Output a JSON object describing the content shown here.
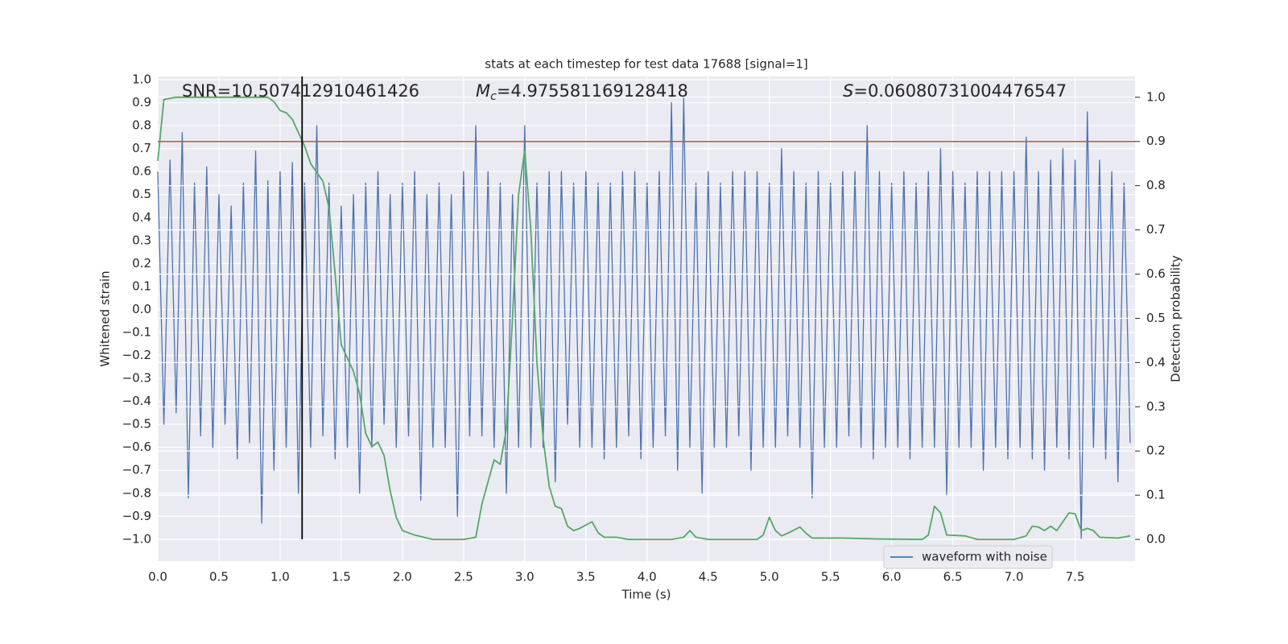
{
  "chart_data": {
    "type": "line",
    "title": "stats at each timestep for test data 17688 [signal=1]",
    "xlabel": "Time (s)",
    "ylabel": "Whitened strain",
    "y2label": "Detection probability",
    "annotations": [
      {
        "parts": [
          {
            "text": "SNR=10.507412910461426"
          }
        ]
      },
      {
        "parts": [
          {
            "text": "M",
            "style": "italic"
          },
          {
            "text": "c",
            "style": "italic-sub"
          },
          {
            "text": "=4.975581169128418"
          }
        ]
      },
      {
        "parts": [
          {
            "text": "S",
            "style": "italic"
          },
          {
            "text": "=0.06080731004476547"
          }
        ]
      }
    ],
    "xlim": [
      0,
      7.99
    ],
    "ylim": [
      -1.095,
      1.014
    ],
    "y2lim": [
      -0.049,
      1.047
    ],
    "xticks": [
      {
        "value": 0,
        "label": "0.0"
      },
      0.5,
      {
        "value": 1,
        "label": "1.0"
      },
      1.5,
      {
        "value": 2,
        "label": "2.0"
      },
      2.5,
      {
        "value": 3,
        "label": "3.0"
      },
      3.5,
      {
        "value": 4,
        "label": "4.0"
      },
      4.5,
      {
        "value": 5,
        "label": "5.0"
      },
      5.5,
      {
        "value": 6,
        "label": "6.0"
      },
      6.5,
      {
        "value": 7,
        "label": "7.0"
      },
      7.5
    ],
    "yticks": [
      {
        "value": 1,
        "label": "1.0"
      },
      0.9,
      0.8,
      0.7,
      0.6,
      0.5,
      0.4,
      0.3,
      0.2,
      0.1,
      {
        "value": 0,
        "label": "0.0"
      },
      {
        "value": -0.1,
        "label": "−0.1"
      },
      {
        "value": -0.2,
        "label": "−0.2"
      },
      {
        "value": -0.3,
        "label": "−0.3"
      },
      {
        "value": -0.4,
        "label": "−0.4"
      },
      {
        "value": -0.5,
        "label": "−0.5"
      },
      {
        "value": -0.6,
        "label": "−0.6"
      },
      {
        "value": -0.7,
        "label": "−0.7"
      },
      {
        "value": -0.8,
        "label": "−0.8"
      },
      {
        "value": -0.9,
        "label": "−0.9"
      },
      {
        "value": -1,
        "label": "−1.0"
      }
    ],
    "y2ticks": [
      {
        "value": 0,
        "label": "0.0"
      },
      0.1,
      0.2,
      0.3,
      0.4,
      0.5,
      0.6,
      0.7,
      0.8,
      0.9,
      {
        "value": 1,
        "label": "1.0"
      }
    ],
    "grid": true,
    "legend": "lower right",
    "hlines": [
      {
        "y": 0.9,
        "axis": "y2",
        "color": "#c44e52"
      }
    ],
    "vlines": [
      {
        "x": 1.18,
        "ymin": -1,
        "color": "#000000"
      }
    ],
    "series": [
      {
        "name": "waveform with noise",
        "color": "#4c72b0",
        "x": [
          0,
          0.05,
          0.1,
          0.15,
          0.2,
          0.25,
          0.3,
          0.35,
          0.4,
          0.45,
          0.5,
          0.55,
          0.6,
          0.65,
          0.7,
          0.75,
          0.8,
          0.85,
          0.9,
          0.95,
          1,
          1.05,
          1.1,
          1.15,
          1.2,
          1.25,
          1.3,
          1.35,
          1.4,
          1.45,
          1.5,
          1.55,
          1.6,
          1.65,
          1.7,
          1.75,
          1.8,
          1.85,
          1.9,
          1.95,
          2,
          2.05,
          2.1,
          2.15,
          2.2,
          2.25,
          2.3,
          2.35,
          2.4,
          2.45,
          2.5,
          2.55,
          2.6,
          2.65,
          2.7,
          2.75,
          2.8,
          2.85,
          2.9,
          2.95,
          3,
          3.05,
          3.1,
          3.15,
          3.2,
          3.25,
          3.3,
          3.35,
          3.4,
          3.45,
          3.5,
          3.55,
          3.6,
          3.65,
          3.7,
          3.75,
          3.8,
          3.85,
          3.9,
          3.95,
          4,
          4.05,
          4.1,
          4.15,
          4.2,
          4.25,
          4.3,
          4.35,
          4.4,
          4.45,
          4.5,
          4.55,
          4.6,
          4.65,
          4.7,
          4.75,
          4.8,
          4.85,
          4.9,
          4.95,
          5,
          5.05,
          5.1,
          5.15,
          5.2,
          5.25,
          5.3,
          5.35,
          5.4,
          5.45,
          5.5,
          5.55,
          5.6,
          5.65,
          5.7,
          5.75,
          5.8,
          5.85,
          5.9,
          5.95,
          6,
          6.05,
          6.1,
          6.15,
          6.2,
          6.25,
          6.3,
          6.35,
          6.4,
          6.45,
          6.5,
          6.55,
          6.6,
          6.65,
          6.7,
          6.75,
          6.8,
          6.85,
          6.9,
          6.95,
          7,
          7.05,
          7.1,
          7.15,
          7.2,
          7.25,
          7.3,
          7.35,
          7.4,
          7.45,
          7.5,
          7.55,
          7.6,
          7.65,
          7.7,
          7.75,
          7.8,
          7.85,
          7.9,
          7.95
        ],
        "values": [
          0.6,
          -0.5,
          0.65,
          -0.45,
          0.77,
          -0.82,
          0.55,
          -0.55,
          0.62,
          -0.6,
          0.5,
          -0.5,
          0.45,
          -0.65,
          0.55,
          -0.58,
          0.69,
          -0.93,
          0.56,
          -0.7,
          0.6,
          -0.6,
          0.64,
          -0.8,
          0.55,
          -0.6,
          0.8,
          -0.55,
          0.55,
          -0.65,
          0.45,
          -0.6,
          0.5,
          -0.8,
          0.55,
          -0.6,
          0.6,
          -0.5,
          0.5,
          -0.6,
          0.55,
          -0.55,
          0.6,
          -0.83,
          0.5,
          -0.6,
          0.55,
          -0.6,
          0.5,
          -0.9,
          0.6,
          -0.55,
          0.8,
          -0.55,
          0.6,
          -0.6,
          0.55,
          -0.8,
          0.5,
          -0.6,
          0.8,
          -0.6,
          0.55,
          -0.6,
          0.6,
          -0.75,
          0.6,
          -0.5,
          0.55,
          -0.6,
          0.6,
          -0.6,
          0.55,
          -0.65,
          0.55,
          -0.6,
          0.6,
          -0.55,
          0.6,
          -0.65,
          0.55,
          -0.6,
          0.6,
          -0.55,
          0.9,
          -0.7,
          0.92,
          -0.6,
          0.55,
          -0.8,
          0.6,
          -0.6,
          0.55,
          -0.6,
          0.6,
          -0.55,
          0.6,
          -0.7,
          0.6,
          -0.6,
          0.55,
          -0.6,
          0.7,
          -0.55,
          0.6,
          -0.6,
          0.55,
          -0.82,
          0.6,
          -0.6,
          0.55,
          -0.6,
          0.6,
          -0.55,
          0.6,
          -0.6,
          0.8,
          -0.65,
          0.6,
          -0.6,
          0.55,
          -0.6,
          0.6,
          -0.65,
          0.55,
          -0.6,
          0.6,
          -0.6,
          0.7,
          -0.81,
          0.6,
          -0.6,
          0.55,
          -0.6,
          0.6,
          -0.7,
          0.6,
          -0.6,
          0.6,
          -0.65,
          0.6,
          -0.6,
          0.75,
          -0.65,
          0.6,
          -0.7,
          0.65,
          -0.6,
          0.7,
          -0.65,
          0.65,
          -1.0,
          0.86,
          -0.6,
          0.65,
          -0.65,
          0.6,
          -0.75,
          0.55,
          -0.58
        ]
      },
      {
        "color": "#55a868",
        "axis": "y2",
        "x": [
          0,
          0.05,
          0.15,
          0.9,
          0.95,
          1,
          1.05,
          1.1,
          1.15,
          1.2,
          1.25,
          1.3,
          1.35,
          1.4,
          1.45,
          1.5,
          1.6,
          1.65,
          1.7,
          1.75,
          1.8,
          1.85,
          1.9,
          1.95,
          2,
          2.1,
          2.25,
          2.5,
          2.6,
          2.65,
          2.75,
          2.8,
          2.85,
          2.9,
          2.95,
          3,
          3.05,
          3.1,
          3.15,
          3.2,
          3.25,
          3.3,
          3.35,
          3.4,
          3.45,
          3.55,
          3.6,
          3.65,
          3.75,
          3.85,
          4.2,
          4.3,
          4.35,
          4.4,
          4.5,
          4.9,
          4.95,
          5,
          5.05,
          5.1,
          5.15,
          5.25,
          5.3,
          5.35,
          5.6,
          5.9,
          6.25,
          6.3,
          6.35,
          6.4,
          6.45,
          6.6,
          6.7,
          7,
          7.1,
          7.15,
          7.2,
          7.25,
          7.3,
          7.35,
          7.45,
          7.5,
          7.55,
          7.6,
          7.65,
          7.7,
          7.85,
          7.95
        ],
        "values": [
          0.856,
          0.995,
          1.0,
          1.0,
          0.99,
          0.97,
          0.965,
          0.95,
          0.92,
          0.89,
          0.85,
          0.83,
          0.81,
          0.75,
          0.6,
          0.44,
          0.38,
          0.33,
          0.24,
          0.21,
          0.22,
          0.19,
          0.11,
          0.05,
          0.02,
          0.01,
          0.0,
          0.0,
          0.005,
          0.08,
          0.18,
          0.17,
          0.25,
          0.5,
          0.78,
          0.88,
          0.7,
          0.4,
          0.23,
          0.12,
          0.075,
          0.07,
          0.03,
          0.02,
          0.025,
          0.04,
          0.015,
          0.005,
          0.005,
          0.0,
          0.0,
          0.005,
          0.02,
          0.005,
          0.0,
          0.0,
          0.01,
          0.05,
          0.02,
          0.008,
          0.014,
          0.028,
          0.014,
          0.003,
          0.003,
          0.001,
          0.0,
          0.01,
          0.075,
          0.06,
          0.01,
          0.008,
          0.0,
          0.0,
          0.008,
          0.03,
          0.028,
          0.02,
          0.03,
          0.02,
          0.06,
          0.058,
          0.02,
          0.025,
          0.02,
          0.005,
          0.003,
          0.008
        ]
      }
    ]
  }
}
